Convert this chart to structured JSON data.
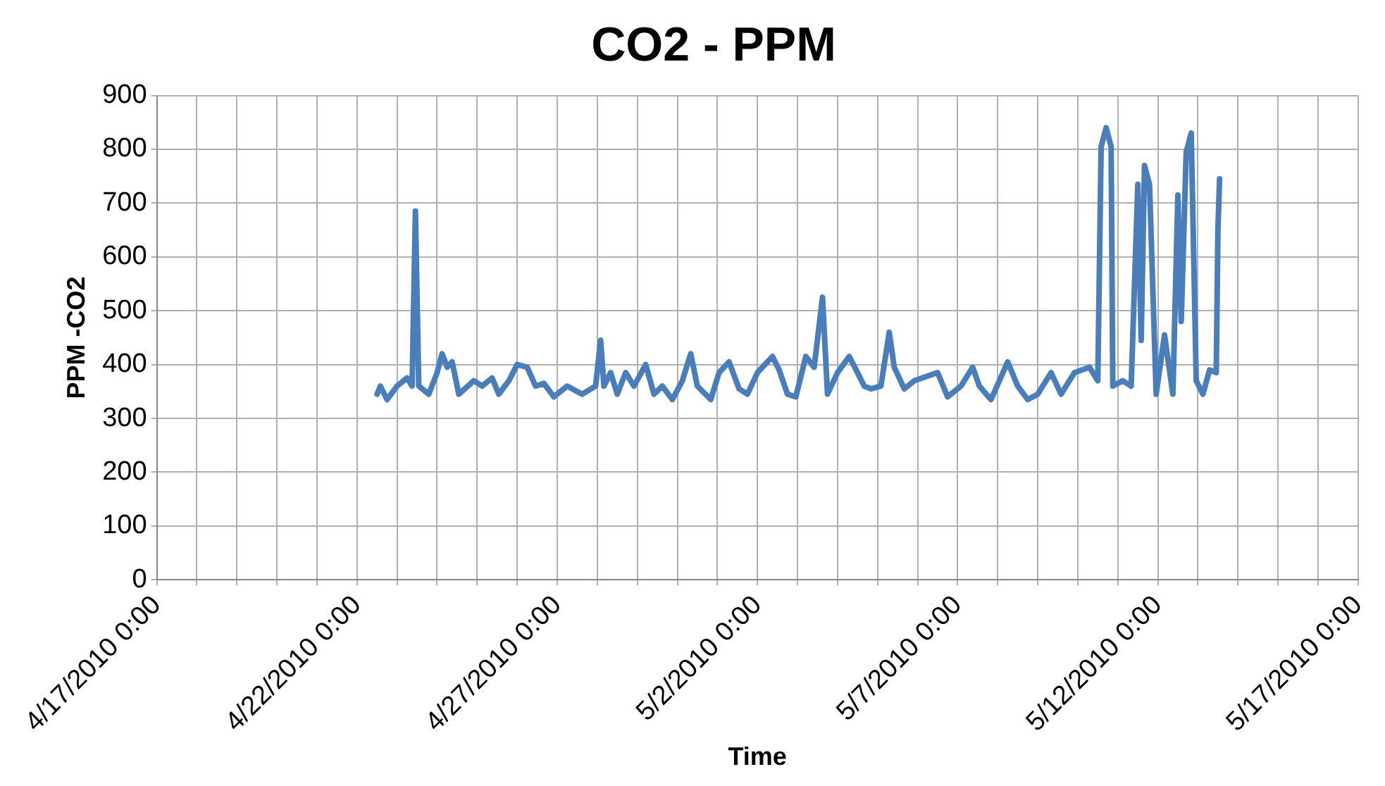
{
  "chart_data": {
    "type": "line",
    "title": "CO2 - PPM",
    "xlabel": "Time",
    "ylabel": "PPM -CO2",
    "x": [
      "2010-04-22T12:00",
      "2010-04-22T14:00",
      "2010-04-22T18:00",
      "2010-04-23T00:00",
      "2010-04-23T06:00",
      "2010-04-23T09:00",
      "2010-04-23T11:00",
      "2010-04-23T13:00",
      "2010-04-23T19:00",
      "2010-04-24T00:00",
      "2010-04-24T03:00",
      "2010-04-24T06:00",
      "2010-04-24T09:00",
      "2010-04-24T13:00",
      "2010-04-24T22:00",
      "2010-04-25T03:00",
      "2010-04-25T09:00",
      "2010-04-25T13:00",
      "2010-04-25T19:00",
      "2010-04-26T00:00",
      "2010-04-26T06:00",
      "2010-04-26T11:00",
      "2010-04-26T16:00",
      "2010-04-26T22:00",
      "2010-04-27T06:00",
      "2010-04-27T15:00",
      "2010-04-27T23:00",
      "2010-04-28T02:00",
      "2010-04-28T04:00",
      "2010-04-28T08:00",
      "2010-04-28T12:00",
      "2010-04-28T17:00",
      "2010-04-28T22:00",
      "2010-04-29T05:00",
      "2010-04-29T10:00",
      "2010-04-29T15:00",
      "2010-04-29T21:00",
      "2010-04-30T03:00",
      "2010-04-30T08:00",
      "2010-04-30T12:00",
      "2010-04-30T20:00",
      "2010-05-01T01:00",
      "2010-05-01T07:00",
      "2010-05-01T13:00",
      "2010-05-01T18:00",
      "2010-05-02T00:00",
      "2010-05-02T09:00",
      "2010-05-02T13:00",
      "2010-05-02T18:00",
      "2010-05-02T23:00",
      "2010-05-03T05:00",
      "2010-05-03T10:00",
      "2010-05-03T15:00",
      "2010-05-03T18:00",
      "2010-05-04T00:00",
      "2010-05-04T07:00",
      "2010-05-04T12:00",
      "2010-05-04T16:00",
      "2010-05-04T20:00",
      "2010-05-05T02:00",
      "2010-05-05T07:00",
      "2010-05-05T10:00",
      "2010-05-05T16:00",
      "2010-05-05T22:00",
      "2010-05-06T12:00",
      "2010-05-06T18:00",
      "2010-05-07T02:00",
      "2010-05-07T09:00",
      "2010-05-07T13:00",
      "2010-05-07T20:00",
      "2010-05-08T06:00",
      "2010-05-08T12:00",
      "2010-05-08T18:00",
      "2010-05-09T00:00",
      "2010-05-09T08:00",
      "2010-05-09T14:00",
      "2010-05-09T22:00",
      "2010-05-10T07:00",
      "2010-05-10T12:00",
      "2010-05-10T14:00",
      "2010-05-10T17:00",
      "2010-05-10T20:00",
      "2010-05-10T21:00",
      "2010-05-11T03:00",
      "2010-05-11T08:00",
      "2010-05-11T12:00",
      "2010-05-11T14:00",
      "2010-05-11T16:00",
      "2010-05-11T19:00",
      "2010-05-11T23:00",
      "2010-05-12T04:00",
      "2010-05-12T09:00",
      "2010-05-12T12:00",
      "2010-05-12T14:00",
      "2010-05-12T17:00",
      "2010-05-12T20:00",
      "2010-05-12T23:00",
      "2010-05-13T03:00",
      "2010-05-13T07:00",
      "2010-05-13T11:00",
      "2010-05-13T12:00",
      "2010-05-13T13:00"
    ],
    "series": [
      {
        "color": "#4a7ebb",
        "values": [
          345,
          360,
          335,
          360,
          375,
          360,
          685,
          360,
          345,
          385,
          420,
          395,
          405,
          345,
          370,
          360,
          375,
          345,
          370,
          400,
          395,
          360,
          365,
          340,
          360,
          345,
          360,
          445,
          360,
          385,
          345,
          385,
          360,
          400,
          345,
          360,
          335,
          370,
          420,
          360,
          335,
          385,
          405,
          355,
          345,
          385,
          415,
          390,
          345,
          340,
          415,
          395,
          525,
          345,
          385,
          415,
          385,
          360,
          355,
          360,
          460,
          395,
          355,
          370,
          385,
          340,
          360,
          395,
          360,
          335,
          405,
          360,
          335,
          345,
          385,
          345,
          385,
          395,
          370,
          805,
          840,
          805,
          360,
          370,
          360,
          735,
          445,
          770,
          735,
          345,
          455,
          345,
          715,
          480,
          795,
          830,
          370,
          345,
          390,
          385,
          650,
          745
        ]
      }
    ],
    "xlim": [
      "2010-04-17",
      "2010-05-17"
    ],
    "xticks": [
      {
        "value": "2010-04-17",
        "label": "4/17/2010 0:00"
      },
      {
        "value": "2010-04-18",
        "label": null
      },
      {
        "value": "2010-04-19",
        "label": null
      },
      {
        "value": "2010-04-20",
        "label": null
      },
      {
        "value": "2010-04-21",
        "label": null
      },
      {
        "value": "2010-04-22",
        "label": "4/22/2010 0:00"
      },
      {
        "value": "2010-04-23",
        "label": null
      },
      {
        "value": "2010-04-24",
        "label": null
      },
      {
        "value": "2010-04-25",
        "label": null
      },
      {
        "value": "2010-04-26",
        "label": null
      },
      {
        "value": "2010-04-27",
        "label": "4/27/2010 0:00"
      },
      {
        "value": "2010-04-28",
        "label": null
      },
      {
        "value": "2010-04-29",
        "label": null
      },
      {
        "value": "2010-04-30",
        "label": null
      },
      {
        "value": "2010-05-01",
        "label": null
      },
      {
        "value": "2010-05-02",
        "label": "5/2/2010 0:00"
      },
      {
        "value": "2010-05-03",
        "label": null
      },
      {
        "value": "2010-05-04",
        "label": null
      },
      {
        "value": "2010-05-05",
        "label": null
      },
      {
        "value": "2010-05-06",
        "label": null
      },
      {
        "value": "2010-05-07",
        "label": "5/7/2010 0:00"
      },
      {
        "value": "2010-05-08",
        "label": null
      },
      {
        "value": "2010-05-09",
        "label": null
      },
      {
        "value": "2010-05-10",
        "label": null
      },
      {
        "value": "2010-05-11",
        "label": null
      },
      {
        "value": "2010-05-12",
        "label": "5/12/2010 0:00"
      },
      {
        "value": "2010-05-13",
        "label": null
      },
      {
        "value": "2010-05-14",
        "label": null
      },
      {
        "value": "2010-05-15",
        "label": null
      },
      {
        "value": "2010-05-16",
        "label": null
      },
      {
        "value": "2010-05-17",
        "label": "5/17/2010 0:00"
      }
    ],
    "ylim": [
      0,
      900
    ],
    "yticks": [
      0,
      100,
      200,
      300,
      400,
      500,
      600,
      700,
      800,
      900
    ],
    "grid": true,
    "marker": "none",
    "line_style": "solid"
  }
}
